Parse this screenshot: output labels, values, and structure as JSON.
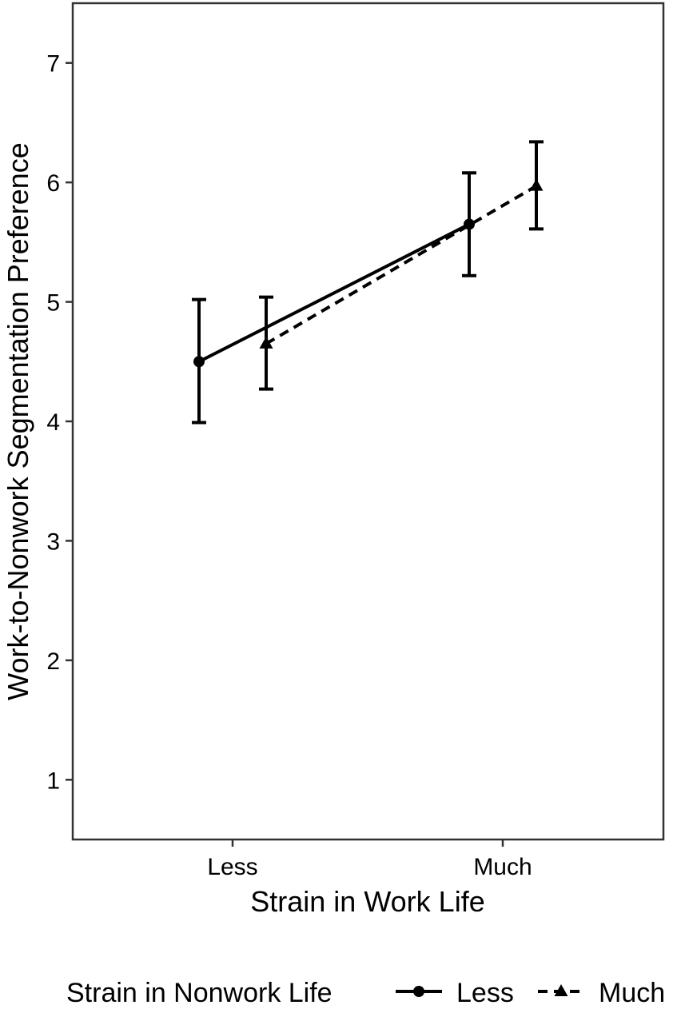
{
  "chart_data": {
    "type": "line",
    "xlabel": "Strain in Work Life",
    "ylabel": "Work-to-Nonwork Segmentation Preference",
    "categories": [
      "Less",
      "Much"
    ],
    "ylim": [
      0.5,
      7.5
    ],
    "yticks": [
      1,
      2,
      3,
      4,
      5,
      6,
      7
    ],
    "grid": false,
    "legend": {
      "title": "Strain in Nonwork Life",
      "placement": "bottom"
    },
    "series": [
      {
        "name": "Less",
        "marker": "circle",
        "linestyle": "solid",
        "values": [
          4.5,
          5.65
        ],
        "ci_lower": [
          3.99,
          5.22
        ],
        "ci_upper": [
          5.02,
          6.08
        ]
      },
      {
        "name": "Much",
        "marker": "triangle",
        "linestyle": "dashed",
        "values": [
          4.65,
          5.97
        ],
        "ci_lower": [
          4.27,
          5.61
        ],
        "ci_upper": [
          5.04,
          6.34
        ]
      }
    ],
    "colors": {
      "line": "#000000",
      "panel_border": "#333333"
    }
  }
}
